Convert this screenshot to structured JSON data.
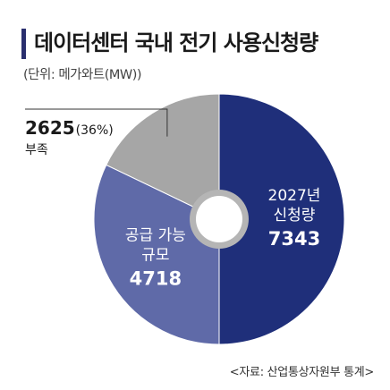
{
  "header": {
    "title": "데이터센터 국내 전기 사용신청량",
    "unit": "(단위: 메가와트(MW))"
  },
  "source": "<자료: 산업통상자원부 통계>",
  "chart_data": {
    "type": "pie",
    "style": "donut",
    "unit": "MW",
    "slices": [
      {
        "label_lines": [
          "2027년",
          "신청량"
        ],
        "value": 7343,
        "value_label": "7343",
        "color": "#1f2f7a",
        "label_color": "#ffffff"
      },
      {
        "label_lines": [
          "공급 가능",
          "규모"
        ],
        "value": 4718,
        "value_label": "4718",
        "color": "#5f6aa8",
        "label_color": "#ffffff"
      },
      {
        "label_lines": [
          "부족"
        ],
        "value": 2625,
        "value_label": "2625",
        "percent_label": "(36%)",
        "color": "#a6a6a6",
        "label_color": "#222222",
        "callout": true
      }
    ]
  }
}
